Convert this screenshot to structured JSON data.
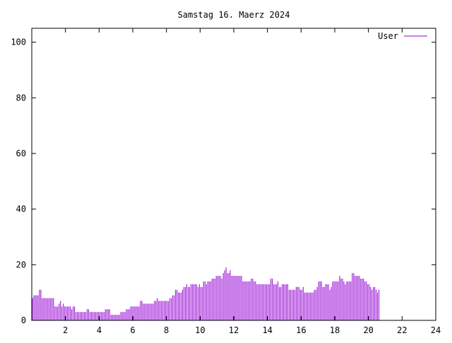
{
  "chart_data": {
    "type": "bar",
    "title": "Samstag 16. Maerz 2024",
    "xlabel": "",
    "ylabel": "",
    "xlim": [
      0,
      24
    ],
    "ylim": [
      0,
      105
    ],
    "xticks": [
      "2",
      "4",
      "6",
      "8",
      "10",
      "12",
      "14",
      "16",
      "18",
      "20",
      "22",
      "24"
    ],
    "yticks": [
      "0",
      "20",
      "40",
      "60",
      "80",
      "100"
    ],
    "grid": false,
    "legend_position": "top-right",
    "sample_interval_minutes": 5,
    "series": [
      {
        "name": "User",
        "color": "#9400d3",
        "values": [
          8,
          9,
          9,
          9,
          9,
          11,
          11,
          8,
          8,
          8,
          8,
          8,
          8,
          8,
          8,
          8,
          5,
          5,
          5,
          6,
          7,
          5,
          6,
          5,
          5,
          5,
          5,
          5,
          4,
          5,
          5,
          3,
          3,
          3,
          3,
          3,
          3,
          3,
          3,
          4,
          4,
          3,
          3,
          3,
          3,
          3,
          3,
          3,
          3,
          3,
          3,
          3,
          4,
          4,
          4,
          4,
          2,
          2,
          2,
          2,
          2,
          2,
          2,
          3,
          3,
          3,
          3,
          4,
          4,
          4,
          5,
          5,
          5,
          5,
          5,
          5,
          5,
          7,
          7,
          6,
          6,
          6,
          6,
          6,
          6,
          6,
          6,
          7,
          7,
          8,
          7,
          7,
          7,
          7,
          7,
          7,
          7,
          7,
          8,
          8,
          9,
          9,
          11,
          11,
          10,
          10,
          10,
          11,
          12,
          12,
          13,
          12,
          12,
          13,
          13,
          13,
          13,
          13,
          12,
          13,
          12,
          12,
          14,
          14,
          13,
          14,
          14,
          14,
          15,
          15,
          15,
          16,
          16,
          16,
          16,
          15,
          17,
          18,
          19,
          17,
          17,
          18,
          16,
          16,
          16,
          16,
          16,
          16,
          16,
          16,
          14,
          14,
          14,
          14,
          14,
          14,
          15,
          15,
          14,
          14,
          13,
          13,
          13,
          13,
          13,
          13,
          13,
          13,
          13,
          13,
          15,
          15,
          13,
          13,
          13,
          14,
          12,
          12,
          13,
          13,
          13,
          13,
          13,
          11,
          11,
          11,
          11,
          11,
          12,
          12,
          12,
          11,
          11,
          12,
          10,
          10,
          10,
          10,
          10,
          10,
          10,
          11,
          11,
          12,
          14,
          14,
          14,
          12,
          12,
          13,
          13,
          13,
          11,
          12,
          14,
          14,
          14,
          14,
          14,
          16,
          15,
          15,
          14,
          13,
          14,
          14,
          14,
          14,
          17,
          17,
          16,
          16,
          16,
          16,
          15,
          15,
          15,
          14,
          14,
          13,
          13,
          12,
          11,
          12,
          12,
          11,
          10,
          11
        ]
      }
    ]
  }
}
